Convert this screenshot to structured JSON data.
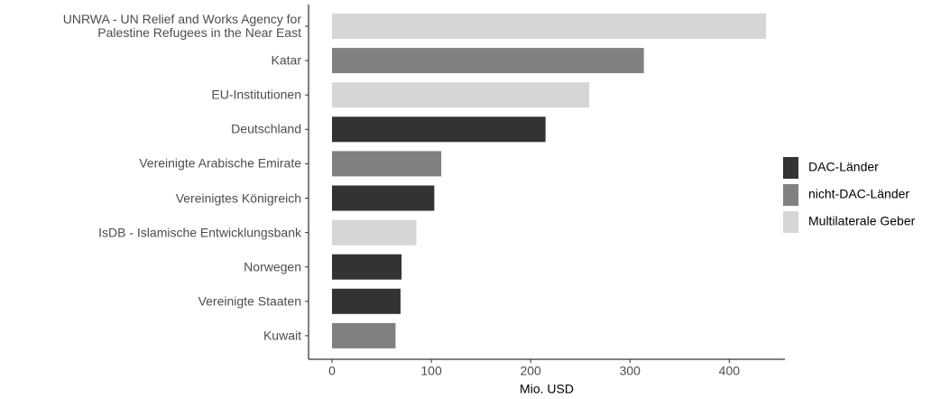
{
  "chart_data": {
    "type": "bar",
    "orientation": "horizontal",
    "x_label": "Mio. USD",
    "categories": [
      "UNRWA - UN Relief and Works Agency for\nPalestine Refugees in the Near East",
      "Katar",
      "EU-Institutionen",
      "Deutschland",
      "Vereinigte Arabische Emirate",
      "Vereinigtes Königreich",
      "IsDB - Islamische Entwicklungsbank",
      "Norwegen",
      "Vereinigte Staaten",
      "Kuwait"
    ],
    "series": [
      {
        "name": "DAC-Länder",
        "color": "#333333",
        "values": [
          null,
          null,
          null,
          215,
          null,
          103,
          null,
          70,
          69,
          null
        ]
      },
      {
        "name": "nicht-DAC-Länder",
        "color": "#808080",
        "values": [
          null,
          314,
          null,
          null,
          110,
          null,
          null,
          null,
          null,
          64
        ]
      },
      {
        "name": "Multilaterale Geber",
        "color": "#d6d6d6",
        "values": [
          437,
          null,
          259,
          null,
          null,
          null,
          85,
          null,
          null,
          null
        ]
      }
    ],
    "xlim": [
      -23.6,
      456
    ],
    "xticks": [
      0,
      100,
      200,
      300,
      400
    ],
    "grid": false,
    "legend": "right"
  }
}
